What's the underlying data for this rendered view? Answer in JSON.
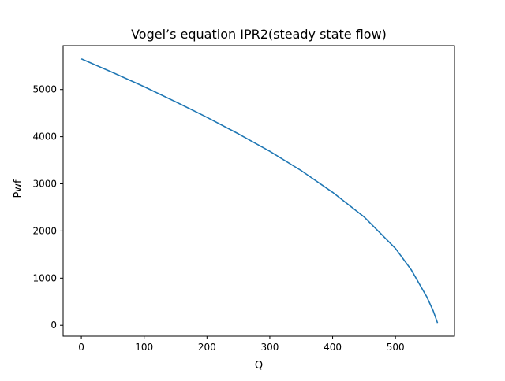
{
  "chart_data": {
    "type": "line",
    "title": "Vogel’s equation IPR2(steady state flow)",
    "xlabel": "Q",
    "ylabel": "Pwf",
    "xlim": [
      -29,
      594
    ],
    "ylim": [
      -230,
      5930
    ],
    "xticks": [
      0,
      100,
      200,
      300,
      400,
      500
    ],
    "yticks": [
      0,
      1000,
      2000,
      3000,
      4000,
      5000
    ],
    "grid": false,
    "line_color": "#1f77b4",
    "series": [
      {
        "x": [
          0,
          50,
          100,
          150,
          200,
          250,
          300,
          350,
          400,
          450,
          500,
          525,
          550,
          560,
          567
        ],
        "y": [
          5650,
          5360,
          5060,
          4740,
          4410,
          4060,
          3690,
          3280,
          2820,
          2300,
          1630,
          1180,
          600,
          310,
          50
        ]
      }
    ]
  }
}
